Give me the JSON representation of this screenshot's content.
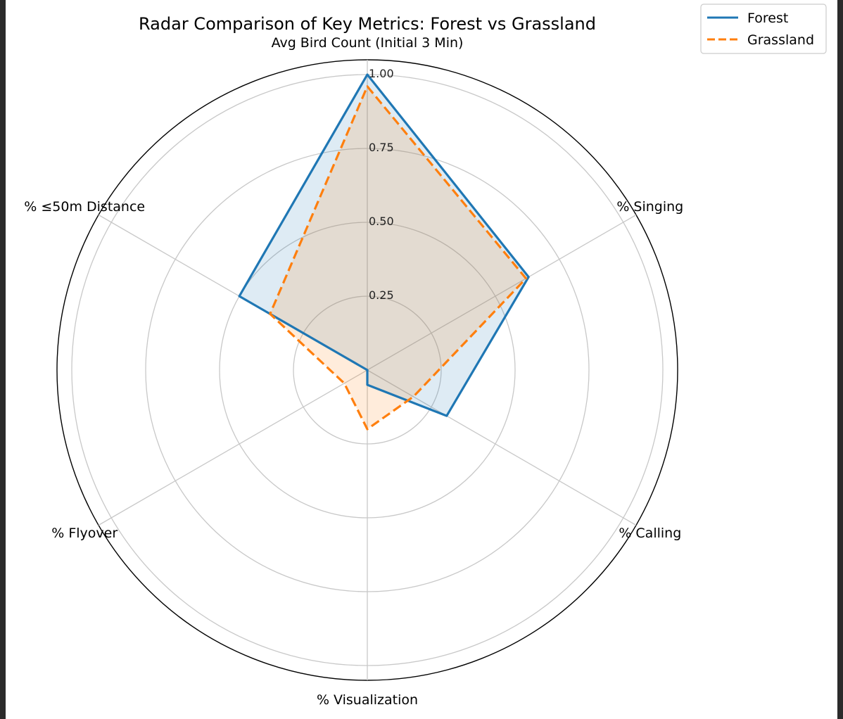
{
  "chart_data": {
    "type": "radar",
    "title": "Radar Comparison of Key Metrics: Forest vs Grassland",
    "categories": [
      "Avg Bird Count (Initial 3 Min)",
      "% Singing",
      "% Calling",
      "% Visualization",
      "% Flyover",
      "% ≤50m Distance"
    ],
    "rlim": [
      0,
      1.0
    ],
    "rticks": [
      0.25,
      0.5,
      0.75,
      1.0
    ],
    "rtick_labels": [
      "0.25",
      "0.50",
      "0.75",
      "1.00"
    ],
    "grid": true,
    "legend_position": "top-right",
    "series": [
      {
        "name": "Forest",
        "values": [
          1.0,
          0.63,
          0.31,
          0.05,
          0.0,
          0.5
        ],
        "color": "#1f77b4",
        "line_style": "solid"
      },
      {
        "name": "Grassland",
        "values": [
          0.96,
          0.62,
          0.18,
          0.2,
          0.09,
          0.38
        ],
        "color": "#ff7f0e",
        "line_style": "dashed"
      }
    ]
  }
}
